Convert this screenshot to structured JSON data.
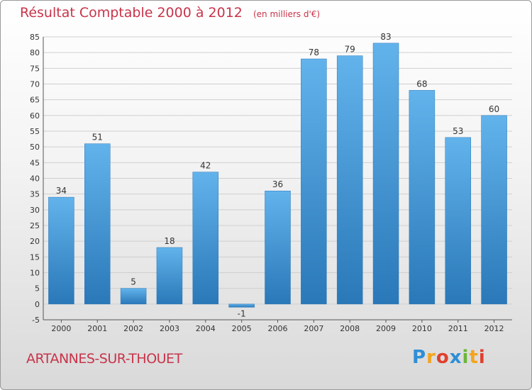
{
  "header": {
    "title": "Résultat Comptable 2000 à 2012",
    "subtitle": "(en milliers d'€)"
  },
  "footer": {
    "town": "ARTANNES-SUR-THOUET",
    "logo": "Proxiti"
  },
  "colors": {
    "bar": "#3d96d8",
    "bar_light": "#62b3ec",
    "bar_dark": "#2a78b8",
    "grid": "#cfcfcf",
    "title": "#c8344a"
  },
  "chart_data": {
    "type": "bar",
    "categories": [
      "2000",
      "2001",
      "2002",
      "2003",
      "2004",
      "2005",
      "2006",
      "2007",
      "2008",
      "2009",
      "2010",
      "2011",
      "2012"
    ],
    "values": [
      34,
      51,
      5,
      18,
      42,
      -1,
      36,
      78,
      79,
      83,
      68,
      53,
      60
    ],
    "title": "Résultat Comptable 2000 à 2012",
    "subtitle": "(en milliers d'€)",
    "ylim": [
      -5,
      85
    ],
    "yticks": [
      -5,
      0,
      5,
      10,
      15,
      20,
      25,
      30,
      35,
      40,
      45,
      50,
      55,
      60,
      65,
      70,
      75,
      80,
      85
    ],
    "grid": true
  }
}
